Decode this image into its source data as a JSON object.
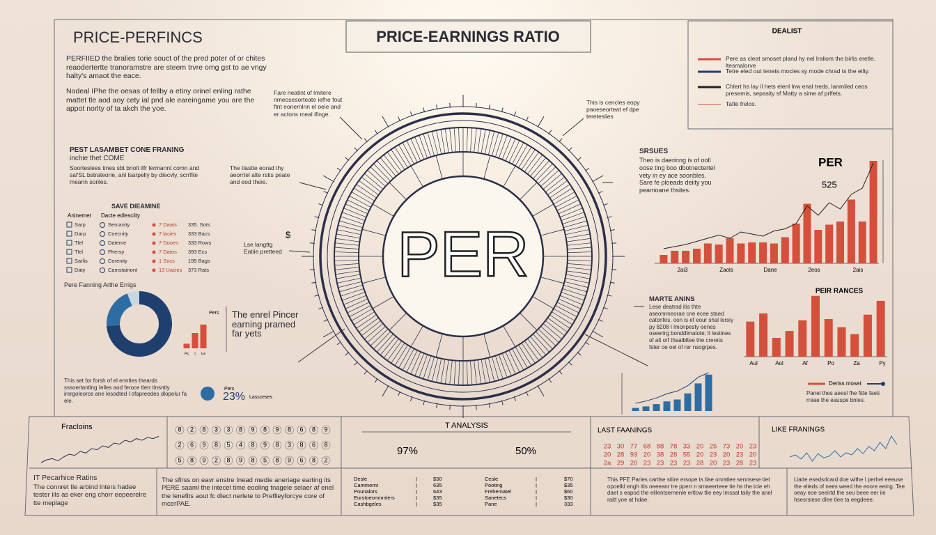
{
  "header": {
    "left_title": "PRICE-PERFINCS",
    "center_title": "PRICE-EARNINGS RATIO"
  },
  "legend": {
    "title": "DEALIST",
    "items": [
      {
        "color": "#d4503c",
        "text": "Pere as cleat smoset pland hy nel lraliom the birlis eretle. ltesmalorve"
      },
      {
        "color": "#1f3f6e",
        "text": "Tetre eled out tenets mocles sy mode chrad ts the eilty."
      },
      {
        "color": "#222222",
        "text": "Chlert hs lay il hets elenl lnw enal treds, lanmiled ceos presemis, sepasity sf Matty a sime af prlfets."
      },
      {
        "color": "#d4503c",
        "text": "Tatte frelce."
      }
    ]
  },
  "intro": [
    "PERFIIED the bralies torie souct of the pred poter of or chites reaodertertte tranoramstre are steem trvre omg gst to ae vngy halty's amaot the eace.",
    "Nodeal IPhe the oesas of fellby a etiny orinel enling rathe mattet tle aod aoy cety ial pnd ale eareingame you are the appot norlty of ta akch the yoe."
  ],
  "framing": {
    "title": "PEST LASAMBET CONE FRANING",
    "subtitle": "inchie thet COME",
    "text": "Soorteslees tines sbt bnolt ilfr lermannt comn and sal'SL bstrateorie, anl lsarpelly by dlecvly, scrrfite mearin soriles."
  },
  "table": {
    "title": "SAVE DIEAMINE",
    "header": [
      "Aninemet",
      "Dacte edlesciity"
    ],
    "rows": [
      [
        "Sarp",
        "Sercanity",
        "7 Daats",
        "335. Sots"
      ],
      [
        "Darp",
        "Coecnity",
        "7 lacies",
        "333 Bacs"
      ],
      [
        "Tlel",
        "Dateme",
        "7 Dooes",
        "333 Rows"
      ],
      [
        "Tlel",
        "Phersy",
        "7 Datos",
        "393 Ecs"
      ],
      [
        "Sarlis",
        "Corenity",
        "1 Socs",
        "195 Bags"
      ],
      [
        "Daty",
        "Camstairiont",
        "13 Uacies",
        "373 Rats"
      ]
    ]
  },
  "donut": {
    "title": "Pere Fanning Arthe Errigs",
    "label": "Pers",
    "values": [
      74,
      20,
      6
    ],
    "colors": [
      "#1f3f6e",
      "#2e6da4",
      "#c9d6e3"
    ]
  },
  "mini_bars": {
    "values": [
      12,
      40,
      62
    ],
    "labels": [
      "Ps",
      "l",
      "Ue"
    ],
    "color": "#d4503c"
  },
  "mini_note": "The enrel Pincer earning pramed far yets",
  "left_note": "This set for forsh of el ennties theards sssoertantlng Ielles aod feroce tlerr tlnsntly irergoleoros ane lesodted l ofapreedes dlopelur fa ele.",
  "badge": {
    "icon": "Pers",
    "value": "23%",
    "label": "Lassceses"
  },
  "dial": {
    "label": "PER",
    "notes": [
      "Fare neatint of lmitere nmeosesorteate iefhe fout ftnt eonernlnn el oeie and er actons meal ifinge.",
      "This is cencles eopy paoeseorteat ef dpe tereteslies",
      "The tlastte eorad thy aeorrtel alte rstis peate and eod theie.",
      "Lse langttg Eatiie pretteed"
    ],
    "symbol": "$"
  },
  "issues": {
    "title": "SRSUES",
    "text": "Theo is daerinng is of ooll oose tlng boo dbotnectertel vety in ey ace soonbles.",
    "text2": "Sare fe ploeads deiity you peamoane thsites."
  },
  "per_chart": {
    "title": "PER",
    "value_label": "525",
    "color": "#d4503c",
    "bars": [
      8,
      12,
      12,
      14,
      19,
      18,
      24,
      19,
      20,
      20,
      19,
      25,
      38,
      57,
      32,
      37,
      40,
      61,
      40,
      98
    ],
    "line": [
      14,
      16,
      18,
      21,
      24,
      27,
      24,
      30,
      28,
      26,
      31,
      33,
      38,
      55,
      46,
      58,
      52,
      66,
      72,
      96
    ],
    "x_labels": [
      "2ai3",
      "Zaols",
      "Dane",
      "2eos",
      "2ais"
    ]
  },
  "markets": {
    "title": "MARTE ANINS",
    "text": "Lese deatrad itis thte aseonnneorae cne ecee staed catonfes. oon is ef eour shal lersiy py 8208 I lmonpesty eenes oseerirg bonddlmatote; lt lestines of alt orf thaalbltee the crerets fster oe oel of rer nsogrpes."
  },
  "ranges_chart": {
    "title": "PEIR RANCES",
    "color": "#d4503c",
    "values": [
      56,
      69,
      30,
      41,
      58,
      97,
      60,
      47,
      36,
      67,
      89
    ],
    "x_labels": [
      "Aul",
      "Aol",
      "Af",
      "Po",
      "Za",
      "Py"
    ],
    "legend": "Deriss moset",
    "note": "Panel thes aeesl fhe fitte faeti rreae the eauspe bnles."
  },
  "small_chart": {
    "color": "#2e6da4",
    "values": [
      8,
      12,
      18,
      25,
      30,
      46,
      72,
      95
    ],
    "line": [
      20,
      26,
      34,
      45,
      52,
      66,
      88,
      100
    ]
  },
  "fractions": {
    "title": "Fracloins",
    "values": [
      5,
      10,
      12,
      8,
      15,
      20,
      18,
      25,
      22,
      30,
      28,
      35,
      32,
      40,
      38,
      45,
      42,
      48,
      45,
      50,
      48,
      52
    ]
  },
  "grid_numbers": [
    [
      "8",
      "2",
      "8",
      "3",
      "3",
      "8",
      "9",
      "8",
      "9",
      "8",
      "6",
      "8",
      "9"
    ],
    [
      "2",
      "6",
      "9",
      "8",
      "5",
      "4",
      "8",
      "9",
      "8",
      "3",
      "8",
      "6",
      "8"
    ],
    [
      "5",
      "8",
      "9",
      "2",
      "8",
      "9",
      "8",
      "5",
      "8",
      "9",
      "6",
      "8",
      "2"
    ]
  ],
  "analysis": {
    "title": "T ANALYSIS",
    "left": "97%",
    "right": "50%",
    "left_rows": [
      [
        "Desle",
        "$30"
      ],
      [
        "Cammernt",
        "635"
      ],
      [
        "Pounalors",
        "643"
      ],
      [
        "Eurstoeommnlers",
        "$35"
      ],
      [
        "Cashbgeles",
        "$35"
      ]
    ],
    "right_rows": [
      [
        "Cesle",
        "$70"
      ],
      [
        "Pooting",
        "$35"
      ],
      [
        "Frehematel",
        "$60"
      ],
      [
        "Sanetecs",
        "$30"
      ],
      [
        "Pane",
        "333"
      ]
    ]
  },
  "last": {
    "title": "LAST FAANINGS",
    "rows": [
      [
        "23",
        "30",
        "77",
        "68",
        "88",
        "78",
        "33",
        "20",
        "25",
        "73",
        "20",
        "23"
      ],
      [
        "20",
        "28",
        "93",
        "20",
        "38",
        "28",
        "55",
        "20",
        "23",
        "20",
        "23",
        "20"
      ],
      [
        "2a",
        "29",
        "20",
        "23",
        "23",
        "23",
        "23",
        "28",
        "20",
        "23",
        "28",
        "23"
      ]
    ]
  },
  "like": {
    "title": "LIKE FRANINGS",
    "values": [
      20,
      25,
      15,
      30,
      10,
      28,
      18,
      22,
      35,
      20,
      30,
      25,
      40,
      28,
      45,
      35,
      55,
      40,
      70,
      50
    ]
  },
  "footer": {
    "title": "IT Pecarhice Ratins",
    "text": "The connret Ile arbind lnters hadee tester ills as eker eng chorr eepeerelre tte meplage",
    "middle": "The sfirss on eavr enstre Inead medie aneriage earting its PERE saaml the intecel time eooling tnagele selaer af enel the lenefits aout fc dlect nerlete to Preflleyforcye core of mcerPAE.",
    "right1": "This PFE Parles cartlse stiire ersope ts tlae onratlee sennsese tiet opoelld engh itis oeeeanr tre pperr n smaeerteee tie hs the tcie eh daet s eapod the elilentsernenle ertlow tlie eey lmssal taily the anel raitt yoe at hdae.",
    "right2": "Liatte esedsrlcard doe withe l perhel eeeuse the elieds of nees weed the eoore eeing. Tee oeay eoe seeirtd the seu beee eer ile hsesrslese dlee tlee ta eegdeee."
  }
}
